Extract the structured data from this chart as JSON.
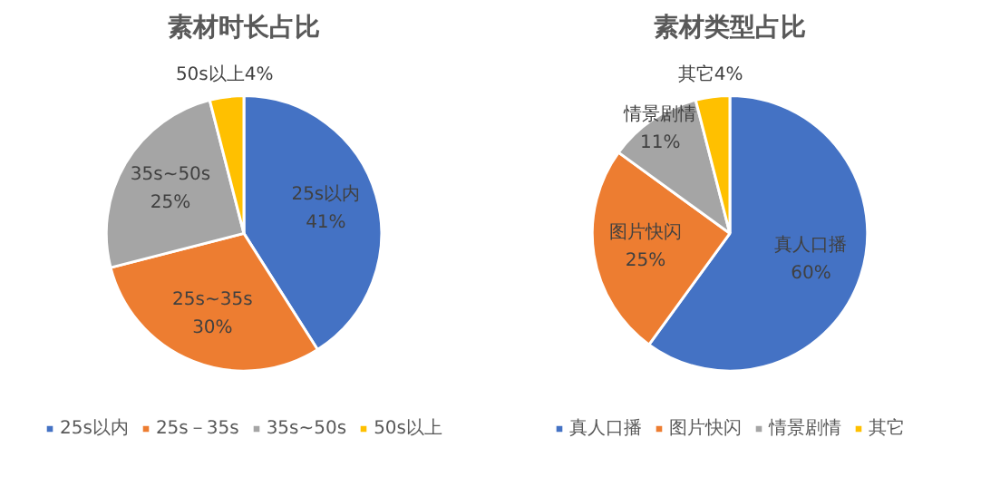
{
  "chart_data": [
    {
      "type": "pie",
      "title": "素材时长占比",
      "categories": [
        "25s以内",
        "25s－35s",
        "35s~50s",
        "50s以上"
      ],
      "values": [
        41,
        30,
        25,
        4
      ],
      "colors": [
        "#4472c4",
        "#ed7d31",
        "#a5a5a5",
        "#ffc000"
      ],
      "value_labels": [
        "25s以内\n41%",
        "25s~35s\n30%",
        "35s~50s\n25%",
        "50s以上4%"
      ],
      "legend": "bottom"
    },
    {
      "type": "pie",
      "title": "素材类型占比",
      "categories": [
        "真人口播",
        "图片快闪",
        "情景剧情",
        "其它"
      ],
      "values": [
        60,
        25,
        11,
        4
      ],
      "colors": [
        "#4472c4",
        "#ed7d31",
        "#a5a5a5",
        "#ffc000"
      ],
      "value_labels": [
        "真人口播\n60%",
        "图片快闪\n25%",
        "情景剧情\n11%",
        "其它4%"
      ],
      "legend": "bottom"
    }
  ]
}
